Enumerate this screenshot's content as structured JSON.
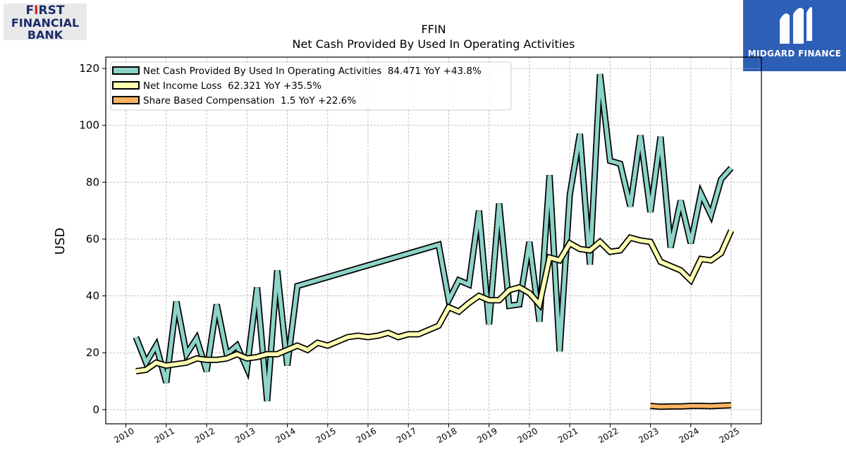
{
  "logos": {
    "left": {
      "line1a": "F",
      "line1b": "I",
      "line1c": "RST",
      "line2": "FINANCIAL",
      "line3": "BANK"
    },
    "right": {
      "name": "MIDGARD FINANCE",
      "icon": "midgard-m-icon"
    }
  },
  "chart_data": {
    "type": "line",
    "title": "FFIN",
    "subtitle": "Net Cash Provided By Used In Operating Activities",
    "ylabel": "USD",
    "xlabel": "",
    "xlim": [
      2009.5,
      2025.75
    ],
    "ylim": [
      -5,
      124
    ],
    "grid": true,
    "legend_position": "top-left",
    "x_ticks": [
      "2010",
      "2011",
      "2012",
      "2013",
      "2014",
      "2015",
      "2016",
      "2017",
      "2018",
      "2019",
      "2020",
      "2021",
      "2022",
      "2023",
      "2024",
      "2025"
    ],
    "y_ticks": [
      0,
      20,
      40,
      60,
      80,
      100,
      120
    ],
    "series": [
      {
        "name": "Net Cash Provided By Used In Operating Activities",
        "legend_label": "Net Cash Provided By Used In Operating Activities  84.471 YoY +43.8%",
        "color": "#8dd3c7",
        "x": [
          2010.25,
          2010.5,
          2010.75,
          2011.0,
          2011.25,
          2011.5,
          2011.75,
          2012.0,
          2012.25,
          2012.5,
          2012.75,
          2013.0,
          2013.25,
          2013.5,
          2013.75,
          2014.0,
          2014.25,
          2017.75,
          2018.0,
          2018.25,
          2018.5,
          2018.75,
          2019.0,
          2019.25,
          2019.5,
          2019.75,
          2020.0,
          2020.25,
          2020.5,
          2020.75,
          2021.0,
          2021.25,
          2021.5,
          2021.75,
          2022.0,
          2022.25,
          2022.5,
          2022.75,
          2023.0,
          2023.25,
          2023.5,
          2023.75,
          2024.0,
          2024.25,
          2024.5,
          2024.75,
          2025.0
        ],
        "values": [
          25.5,
          16.5,
          22.5,
          9.5,
          38.0,
          19.5,
          25.0,
          13.5,
          37.0,
          19.5,
          22.5,
          14.5,
          43.0,
          3.0,
          49.0,
          15.5,
          43.5,
          58.0,
          38.5,
          45.5,
          44.0,
          70.0,
          30.0,
          72.5,
          36.5,
          37.0,
          59.0,
          31.0,
          82.5,
          20.5,
          75.5,
          97.0,
          51.0,
          118.0,
          87.5,
          86.5,
          71.5,
          96.5,
          69.5,
          96.0,
          57.0,
          73.5,
          58.5,
          76.0,
          68.5,
          81.0,
          85.0
        ]
      },
      {
        "name": "Net Income Loss",
        "legend_label": "Net Income Loss  62.321 YoY +35.5%",
        "color": "#ffffb3",
        "x": [
          2010.25,
          2010.5,
          2010.75,
          2011.0,
          2011.25,
          2011.5,
          2011.75,
          2012.0,
          2012.25,
          2012.5,
          2012.75,
          2013.0,
          2013.25,
          2013.5,
          2013.75,
          2014.0,
          2014.25,
          2014.5,
          2014.75,
          2015.0,
          2015.25,
          2015.5,
          2015.75,
          2016.0,
          2016.25,
          2016.5,
          2016.75,
          2017.0,
          2017.25,
          2017.5,
          2017.75,
          2018.0,
          2018.25,
          2018.5,
          2018.75,
          2019.0,
          2019.25,
          2019.5,
          2019.75,
          2020.0,
          2020.25,
          2020.5,
          2020.75,
          2021.0,
          2021.25,
          2021.5,
          2021.75,
          2022.0,
          2022.25,
          2022.5,
          2022.75,
          2023.0,
          2023.25,
          2023.5,
          2023.75,
          2024.0,
          2024.25,
          2024.5,
          2024.75,
          2025.0
        ],
        "values": [
          13.5,
          14.0,
          16.5,
          15.5,
          16.0,
          16.5,
          18.0,
          17.5,
          17.5,
          18.0,
          19.5,
          18.0,
          18.5,
          19.5,
          19.5,
          21.0,
          22.5,
          21.0,
          23.5,
          22.5,
          24.0,
          25.5,
          26.0,
          25.5,
          26.0,
          27.0,
          25.5,
          26.5,
          26.5,
          28.0,
          29.5,
          36.0,
          34.5,
          37.5,
          40.0,
          38.5,
          38.5,
          42.0,
          43.0,
          41.0,
          37.0,
          53.5,
          52.5,
          58.5,
          56.5,
          56.0,
          59.0,
          55.5,
          56.0,
          60.5,
          59.5,
          59.0,
          52.0,
          50.5,
          49.0,
          45.5,
          53.0,
          52.5,
          55.0,
          63.0
        ]
      },
      {
        "name": "Share Based Compensation",
        "legend_label": "Share Based Compensation  1.5 YoY +22.6%",
        "color": "#fdb462",
        "x": [
          2023.0,
          2023.25,
          2023.5,
          2023.75,
          2024.0,
          2024.25,
          2024.5,
          2024.75,
          2025.0
        ],
        "values": [
          1.3,
          1.0,
          1.1,
          1.1,
          1.3,
          1.3,
          1.2,
          1.4,
          1.5
        ]
      }
    ]
  }
}
